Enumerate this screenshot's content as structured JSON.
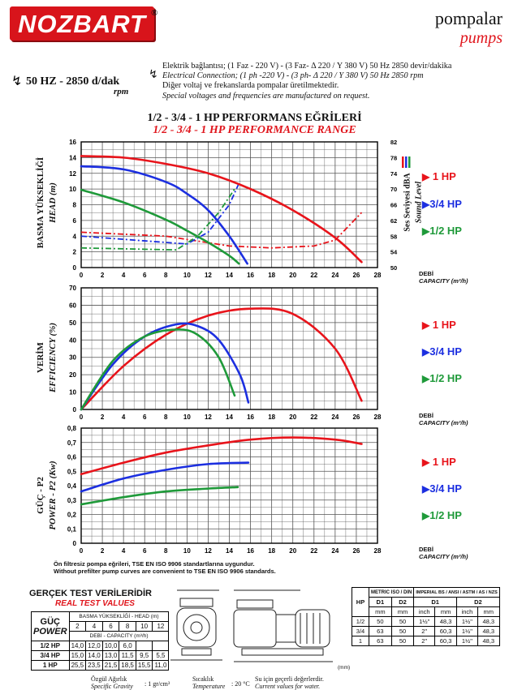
{
  "brand": {
    "name": "NOZBART",
    "reg": "®",
    "tr": "pompalar",
    "en": "pumps"
  },
  "spec": {
    "hz": "50 HZ - 2850 d/dak",
    "rpm": "rpm"
  },
  "notes": [
    "Elektrik bağlantısı; (1 Faz - 220 V) - (3 Faz- Δ 220 / Y 380 V) 50 Hz 2850 devir/dakika",
    "Electrical Connection; (1 ph -220 V) - (3 ph- Δ 220 / Y 380 V) 50 Hz 2850 rpm",
    "Diğer voltaj ve frekanslarda pompalar üretilmektedir.",
    "Special voltages and frequencies are manufactured on request."
  ],
  "title": {
    "tr": "1/2 - 3/4 - 1 HP PERFORMANS EĞRİLERİ",
    "en": "1/2 - 3/4 - 1 HP PERFORMANCE RANGE"
  },
  "colors": {
    "one": "#e8141b",
    "three_quarter": "#1c2fe0",
    "half": "#1f9a3a",
    "brand": "#d8141b"
  },
  "axis": {
    "x_label_tr": "DEBİ",
    "x_label_en": "CAPACITY (m³/h)",
    "x_ticks": [
      "0",
      "2",
      "4",
      "6",
      "8",
      "10",
      "12",
      "14",
      "16",
      "18",
      "20",
      "22",
      "24",
      "26",
      "28"
    ]
  },
  "legend": {
    "one": "1 HP",
    "three_quarter": "3/4 HP",
    "half": "1/2 HP"
  },
  "chart_data": [
    {
      "type": "line",
      "ylabel_tr": "BASMA YÜKSEKLİĞİ",
      "ylabel_en": "HEAD (m)",
      "y2label_tr": "Ses Seviyesi dBA",
      "y2label_en": "Sound Level",
      "xlim": [
        0,
        28
      ],
      "ylim": [
        0,
        16
      ],
      "y2lim": [
        50,
        82
      ],
      "y_ticks": [
        "0",
        "2",
        "4",
        "6",
        "8",
        "10",
        "12",
        "14",
        "16"
      ],
      "y2_ticks": [
        "50",
        "54",
        "58",
        "62",
        "66",
        "70",
        "74",
        "78",
        "82"
      ],
      "series": [
        {
          "name": "1 HP",
          "x": [
            0,
            4,
            8,
            12,
            16,
            20,
            24,
            26.5
          ],
          "values": [
            14.2,
            14,
            13.2,
            12,
            10,
            7.3,
            3.8,
            0.7
          ]
        },
        {
          "name": "3/4 HP",
          "x": [
            0,
            4,
            8,
            10,
            12,
            14,
            15.7
          ],
          "values": [
            12.9,
            12.5,
            10.9,
            9.4,
            7.3,
            4,
            0.5
          ]
        },
        {
          "name": "1/2 HP",
          "x": [
            0,
            4,
            8,
            10,
            12,
            14,
            14.9
          ],
          "values": [
            9.9,
            8.3,
            6.1,
            4.7,
            3.2,
            1.5,
            0.5
          ]
        }
      ],
      "sound_series": [
        {
          "name": "1 HP",
          "x": [
            0,
            8,
            14,
            18,
            22,
            24,
            26.5
          ],
          "values": [
            59,
            58,
            55.5,
            55,
            55.5,
            57,
            64
          ]
        },
        {
          "name": "3/4 HP",
          "x": [
            0,
            10,
            12,
            14,
            15
          ],
          "values": [
            58,
            56,
            59,
            66,
            72
          ]
        },
        {
          "name": "1/2 HP",
          "x": [
            0,
            9,
            11,
            13,
            14.5
          ],
          "values": [
            55,
            54.5,
            58,
            64,
            70
          ]
        }
      ]
    },
    {
      "type": "line",
      "ylabel_tr": "VERİM",
      "ylabel_en": "EFFICIENCY (%)",
      "xlim": [
        0,
        28
      ],
      "ylim": [
        0,
        70
      ],
      "y_ticks": [
        "0",
        "10",
        "20",
        "30",
        "40",
        "50",
        "60",
        "70"
      ],
      "series": [
        {
          "name": "1 HP",
          "x": [
            0,
            4,
            8,
            12,
            16,
            20,
            24,
            26.5
          ],
          "values": [
            0,
            25,
            43,
            54,
            58,
            55,
            35,
            5
          ]
        },
        {
          "name": "3/4 HP",
          "x": [
            0,
            3,
            6,
            9,
            11,
            13,
            15,
            15.8
          ],
          "values": [
            0,
            26,
            42,
            49,
            48,
            40,
            20,
            4
          ]
        },
        {
          "name": "1/2 HP",
          "x": [
            0,
            3,
            6,
            9,
            11,
            13,
            14.5
          ],
          "values": [
            0,
            28,
            42,
            46,
            43,
            30,
            8
          ]
        }
      ]
    },
    {
      "type": "line",
      "ylabel_tr": "GÜÇ - P2",
      "ylabel_en": "POWER - P2 (Kw)",
      "xlim": [
        0,
        28
      ],
      "ylim": [
        0,
        0.8
      ],
      "y_ticks": [
        "0",
        "0,1",
        "0,2",
        "0,3",
        "0,4",
        "0,5",
        "0,6",
        "0,7",
        "0,8"
      ],
      "series": [
        {
          "name": "1 HP",
          "x": [
            0,
            4,
            8,
            12,
            16,
            20,
            24,
            26.5
          ],
          "values": [
            0.48,
            0.56,
            0.63,
            0.68,
            0.72,
            0.735,
            0.72,
            0.69
          ]
        },
        {
          "name": "3/4 HP",
          "x": [
            0,
            4,
            8,
            12,
            15.8
          ],
          "values": [
            0.36,
            0.45,
            0.51,
            0.55,
            0.56
          ]
        },
        {
          "name": "1/2 HP",
          "x": [
            0,
            4,
            8,
            12,
            14.8
          ],
          "values": [
            0.27,
            0.32,
            0.36,
            0.38,
            0.39
          ]
        }
      ]
    }
  ],
  "chart_note": {
    "tr": "Ön filtresiz pompa eğrileri, TSE EN ISO 9906 standartlarına uygundur.",
    "en": "Without prefilter pump curves are convenient to TSE EN ISO 9906 standards."
  },
  "test": {
    "title_tr": "GERÇEK TEST VERİLERİDİR",
    "title_en": "REAL TEST VALUES",
    "power_tr": "GÜÇ",
    "power_en": "POWER",
    "head_label": "BASMA YÜKSEKLİĞİ - HEAD (m)",
    "cap_label": "DEBİ - CAPACITY (m³/h)",
    "head_cols": [
      "2",
      "4",
      "6",
      "8",
      "10",
      "12"
    ],
    "rows": [
      {
        "hp": "1/2 HP",
        "vals": [
          "14,0",
          "12,0",
          "10,0",
          "6,0",
          "",
          ""
        ]
      },
      {
        "hp": "3/4 HP",
        "vals": [
          "15,0",
          "14,0",
          "13,0",
          "11,5",
          "9,5",
          "5,5"
        ]
      },
      {
        "hp": "1 HP",
        "vals": [
          "25,5",
          "23,5",
          "21,5",
          "18,5",
          "15,5",
          "11,0"
        ]
      }
    ]
  },
  "dims": {
    "hp": "HP",
    "metric": "METRIC ISO / DIN",
    "imperial": "IMPERIAL BS / ANSI / ASTM / AS / NZS",
    "d1": "D1",
    "d2": "D2",
    "mm": "mm",
    "inch": "inch",
    "rows": [
      {
        "hp": "1/2",
        "m1": "50",
        "m2": "50",
        "i1": "1½\"",
        "i1mm": "48,3",
        "i2": "1½\"",
        "i2mm": "48,3"
      },
      {
        "hp": "3/4",
        "m1": "63",
        "m2": "50",
        "i1": "2\"",
        "i1mm": "60,3",
        "i2": "1½\"",
        "i2mm": "48,3"
      },
      {
        "hp": "1",
        "m1": "63",
        "m2": "50",
        "i1": "2\"",
        "i1mm": "60,3",
        "i2": "1½\"",
        "i2mm": "48,3"
      }
    ],
    "unit": "(mm)"
  },
  "footer": {
    "gravity_tr": "Özgül Ağırlık",
    "gravity_en": "Specific Gravity",
    "gravity_val": ": 1 gr/cm³",
    "temp_tr": "Sıcaklık",
    "temp_en": "Temperature",
    "temp_val": ": 20 °C",
    "current_tr": "Su için geçerli değerlerdir.",
    "current_en": "Current values for water."
  }
}
